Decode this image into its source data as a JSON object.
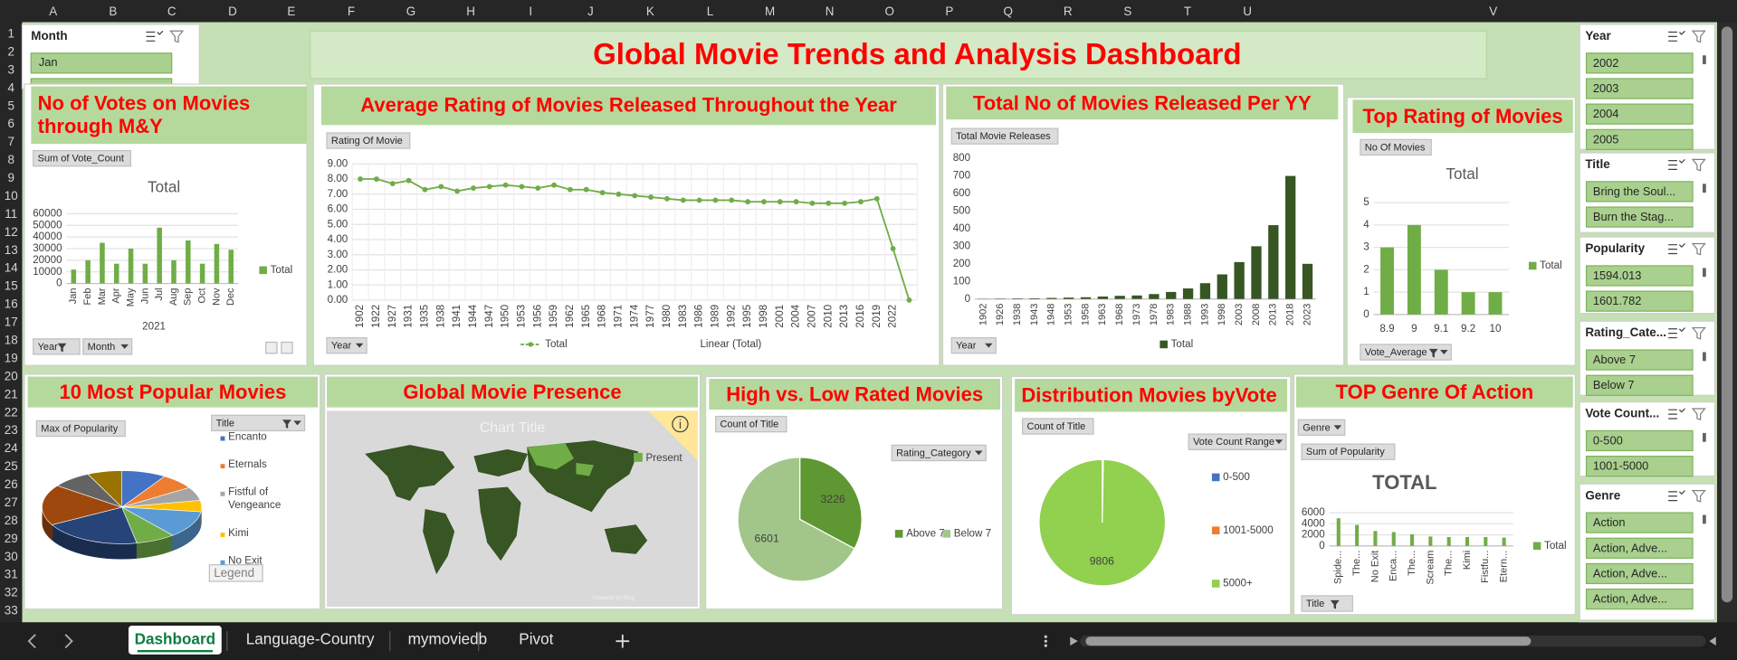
{
  "sheet": {
    "columns": [
      "A",
      "B",
      "C",
      "D",
      "E",
      "F",
      "G",
      "H",
      "I",
      "J",
      "K",
      "L",
      "M",
      "N",
      "O",
      "P",
      "Q",
      "R",
      "S",
      "T",
      "U",
      "V"
    ],
    "rows": [
      1,
      2,
      3,
      4,
      5,
      6,
      7,
      8,
      9,
      10,
      11,
      12,
      13,
      14,
      15,
      16,
      17,
      18,
      19,
      20,
      21,
      22,
      23,
      24,
      25,
      26,
      27,
      28,
      29,
      30,
      31,
      32,
      33
    ]
  },
  "title": "Global Movie Trends and Analysis Dashboard",
  "month_slicer": {
    "title": "Month",
    "items": [
      "Jan"
    ]
  },
  "slicers": [
    {
      "title": "Year",
      "items": [
        "2002",
        "2003",
        "2004",
        "2005"
      ]
    },
    {
      "title": "Title",
      "items": [
        "Bring the Soul...",
        "Burn the Stag..."
      ]
    },
    {
      "title": "Popularity",
      "items": [
        "1594.013",
        "1601.782"
      ]
    },
    {
      "title": "Rating_Cate...",
      "items": [
        "Above 7",
        "Below 7"
      ]
    },
    {
      "title": "Vote Count...",
      "items": [
        "0-500",
        "1001-5000"
      ]
    },
    {
      "title": "Genre",
      "items": [
        "Action",
        "Action, Adve...",
        "Action, Adve...",
        "Action, Adve..."
      ]
    }
  ],
  "charts": [
    {
      "type": "bar",
      "title": "No of Votes on Movies through M&Y",
      "value_button": "Sum of Vote_Count",
      "chart_title": "Total",
      "categories": [
        "Jan",
        "Feb",
        "Mar",
        "Apr",
        "May",
        "Jun",
        "Jul",
        "Aug",
        "Sep",
        "Oct",
        "Nov",
        "Dec"
      ],
      "group_label": "2021",
      "series": [
        {
          "name": "Total",
          "color": "#70ad47",
          "values": [
            12000,
            20000,
            35000,
            17000,
            30000,
            17000,
            48000,
            20000,
            37000,
            17000,
            34000,
            29000
          ]
        }
      ],
      "ylim": [
        0,
        60000
      ],
      "yticks": [
        0,
        10000,
        20000,
        30000,
        40000,
        50000,
        60000
      ],
      "grid": true,
      "legend": "right",
      "filter_buttons": [
        "Year",
        "Month"
      ]
    },
    {
      "type": "line",
      "title": "Average Rating of Movies Released Throughout the Year",
      "value_button": "Rating Of Movie",
      "categories": [
        "1902",
        "1922",
        "1927",
        "1931",
        "1935",
        "1938",
        "1941",
        "1944",
        "1947",
        "1950",
        "1953",
        "1956",
        "1959",
        "1962",
        "1965",
        "1968",
        "1971",
        "1974",
        "1977",
        "1980",
        "1983",
        "1986",
        "1989",
        "1992",
        "1995",
        "1998",
        "2001",
        "2004",
        "2007",
        "2010",
        "2013",
        "2016",
        "2019",
        "2022",
        null
      ],
      "series": [
        {
          "name": "Total",
          "color": "#70ad47",
          "values": [
            8.0,
            8.0,
            7.7,
            7.9,
            7.3,
            7.5,
            7.2,
            7.4,
            7.5,
            7.6,
            7.5,
            7.4,
            7.6,
            7.3,
            7.3,
            7.1,
            7.0,
            6.9,
            6.8,
            6.7,
            6.6,
            6.6,
            6.6,
            6.6,
            6.5,
            6.5,
            6.5,
            6.5,
            6.4,
            6.4,
            6.4,
            6.5,
            6.7,
            3.4,
            0.0
          ]
        }
      ],
      "trendline_label": "Linear (Total)",
      "ylim": [
        0,
        9
      ],
      "yticks": [
        {
          "value": 0,
          "label": "0.00"
        },
        {
          "value": 1,
          "label": "1.00"
        },
        {
          "value": 2,
          "label": "2.00"
        },
        {
          "value": 3,
          "label": "3.00"
        },
        {
          "value": 4,
          "label": "4.00"
        },
        {
          "value": 5,
          "label": "5.00"
        },
        {
          "value": 6,
          "label": "6.00"
        },
        {
          "value": 7,
          "label": "7.00"
        },
        {
          "value": 8,
          "label": "8.00"
        },
        {
          "value": 9,
          "label": "9.00"
        }
      ],
      "grid": true,
      "legend": "bottom",
      "filter_buttons": [
        "Year"
      ]
    },
    {
      "type": "bar",
      "title": "Total No of Movies Released Per YY",
      "value_button": "Total Movie Releases",
      "categories": [
        "1902",
        "1926",
        "1938",
        "1943",
        "1948",
        "1953",
        "1958",
        "1963",
        "1968",
        "1973",
        "1978",
        "1983",
        "1988",
        "1993",
        "1998",
        "2003",
        "2008",
        "2013",
        "2018",
        "2023"
      ],
      "series": [
        {
          "name": "Total",
          "color": "#375623",
          "values": [
            1,
            2,
            3,
            4,
            6,
            8,
            10,
            14,
            18,
            20,
            28,
            40,
            60,
            90,
            140,
            210,
            300,
            420,
            700,
            200
          ]
        }
      ],
      "ylim": [
        0,
        800
      ],
      "yticks": [
        0,
        100,
        200,
        300,
        400,
        500,
        600,
        700,
        800
      ],
      "grid": false,
      "legend": "bottom",
      "filter_buttons": [
        "Year"
      ]
    },
    {
      "type": "bar",
      "title": "Top Rating of Movies",
      "value_button": "No Of Movies",
      "chart_title": "Total",
      "categories": [
        "8.9",
        "9",
        "9.1",
        "9.2",
        "10"
      ],
      "series": [
        {
          "name": "Total",
          "color": "#70ad47",
          "values": [
            3,
            4,
            2,
            1,
            1
          ]
        }
      ],
      "ylim": [
        0,
        5
      ],
      "yticks": [
        0,
        1,
        2,
        3,
        4,
        5
      ],
      "grid": true,
      "legend": "right",
      "filter_buttons": [
        "Vote_Average"
      ]
    },
    {
      "type": "pie3d",
      "title": "10 Most Popular Movies",
      "value_button": "Max of Popularity",
      "legend_button": "Title",
      "legend_tag": "Legend",
      "categories": [
        "Encanto",
        "Eternals",
        "Fistful of Vengeance",
        "Kimi",
        "No Exit",
        null,
        null,
        null,
        null,
        null
      ],
      "values": [
        9,
        7,
        6,
        5,
        12,
        8,
        20,
        18,
        8,
        7
      ],
      "colors": [
        "#4472c4",
        "#ed7d31",
        "#a5a5a5",
        "#ffc000",
        "#5b9bd5",
        "#70ad47",
        "#264478",
        "#9e480e",
        "#636363",
        "#997300"
      ]
    },
    {
      "type": "map",
      "title": "Global Movie Presence",
      "chart_title": "Chart Title",
      "legend": "Present",
      "color": "#375623",
      "highlight": "#70ad47",
      "credit": "Powered by Bing"
    },
    {
      "type": "pie",
      "title": "High vs. Low Rated Movies",
      "value_button": "Count of Title",
      "legend_button": "Rating_Category",
      "categories": [
        "Above 7",
        "Below 7"
      ],
      "values": [
        3226,
        6601
      ],
      "colors": [
        "#5f9732",
        "#a2c68a"
      ],
      "data_labels": true
    },
    {
      "type": "pie",
      "title": "Distribution Movies byVote",
      "value_button": "Count of Title",
      "legend_button": "Vote Count Range",
      "categories": [
        "0-500",
        "1001-5000",
        "5000+"
      ],
      "values": [
        8,
        20,
        9806
      ],
      "colors": [
        "#4472c4",
        "#ed7d31",
        "#92d050"
      ],
      "data_labels": [
        false,
        false,
        true
      ]
    },
    {
      "type": "bar",
      "title": "TOP Genre Of Action",
      "value_button": "Sum of Popularity",
      "filter_top": "Genre",
      "chart_title": "TOTAL",
      "categories": [
        "Spide...",
        "The...",
        "No Exit",
        "Enca...",
        "The...",
        "Scream",
        "The...",
        "Kimi",
        "Fistfu...",
        "Etern..."
      ],
      "series": [
        {
          "name": "Total",
          "color": "#70ad47",
          "values": [
            5000,
            3800,
            2700,
            2500,
            2100,
            1700,
            1600,
            1600,
            1600,
            1500
          ]
        }
      ],
      "ylim": [
        0,
        6000
      ],
      "yticks": [
        0,
        2000,
        4000,
        6000
      ],
      "grid": true,
      "legend": "right",
      "filter_buttons": [
        "Title"
      ]
    }
  ],
  "tabs": [
    "Dashboard",
    "Language-Country",
    "mymoviedb",
    "Pivot"
  ],
  "active_tab": 0
}
